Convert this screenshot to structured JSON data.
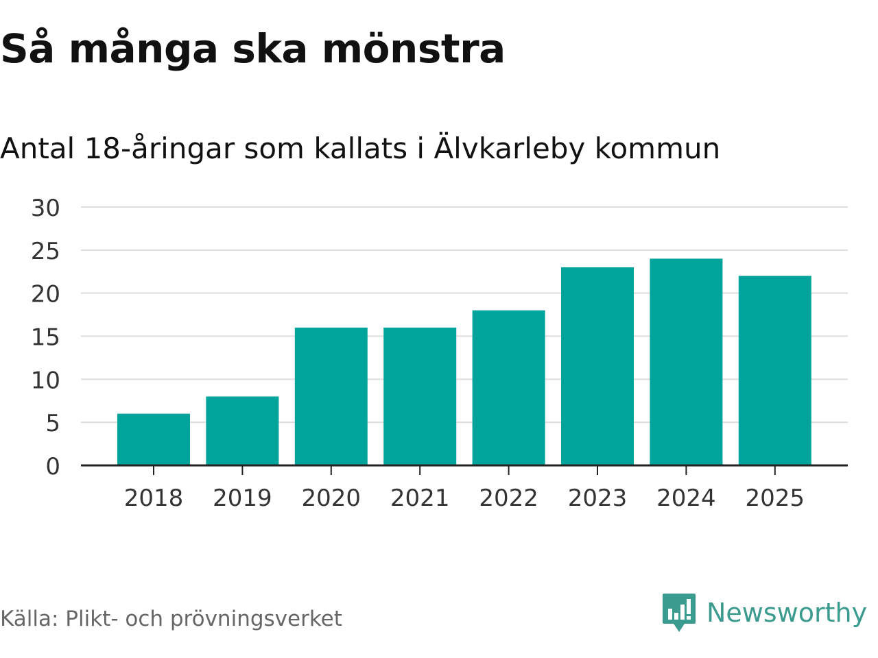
{
  "chart_data": {
    "type": "bar",
    "title": "Så många ska mönstra",
    "subtitle": "Antal 18-åringar som kallats i Älvkarleby kommun",
    "categories": [
      "2018",
      "2019",
      "2020",
      "2021",
      "2022",
      "2023",
      "2024",
      "2025"
    ],
    "values": [
      6,
      8,
      16,
      16,
      18,
      23,
      24,
      22
    ],
    "ylim": [
      0,
      30
    ],
    "yticks": [
      0,
      5,
      10,
      15,
      20,
      25,
      30
    ],
    "xlabel": "",
    "ylabel": "",
    "grid": true,
    "legend": "none"
  },
  "footer": {
    "source": "Källa: Plikt- och prövningsverket",
    "brand": "Newsworthy"
  },
  "colors": {
    "bar": "#00a49a",
    "grid": "#dddddd",
    "axis": "#222222",
    "tick_text": "#333333",
    "brand": "#3a9b8e"
  },
  "icons": {
    "brand_logo": "newsworthy-logo-icon"
  }
}
